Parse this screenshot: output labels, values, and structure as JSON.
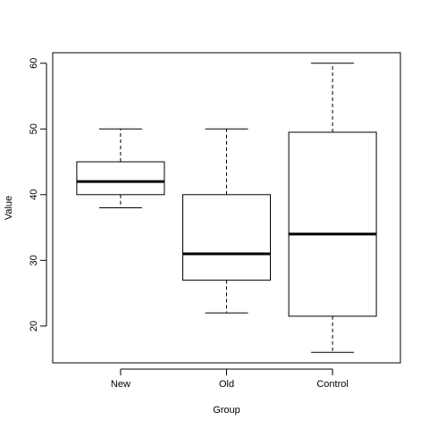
{
  "chart_data": {
    "type": "boxplot",
    "title": "",
    "xlabel": "Group",
    "ylabel": "Value",
    "ylim": [
      14.4,
      61.6
    ],
    "yticks": [
      20,
      30,
      40,
      50,
      60
    ],
    "grid": false,
    "legend": "none",
    "categories": [
      "New",
      "Old",
      "Control"
    ],
    "boxes": [
      {
        "category": "New",
        "whisker_low": 38,
        "q1": 40,
        "median": 42,
        "q3": 45,
        "whisker_high": 50
      },
      {
        "category": "Old",
        "whisker_low": 22,
        "q1": 27,
        "median": 31,
        "q3": 40,
        "whisker_high": 50
      },
      {
        "category": "Control",
        "whisker_low": 16,
        "q1": 21.5,
        "median": 34,
        "q3": 49.5,
        "whisker_high": 60
      }
    ]
  }
}
